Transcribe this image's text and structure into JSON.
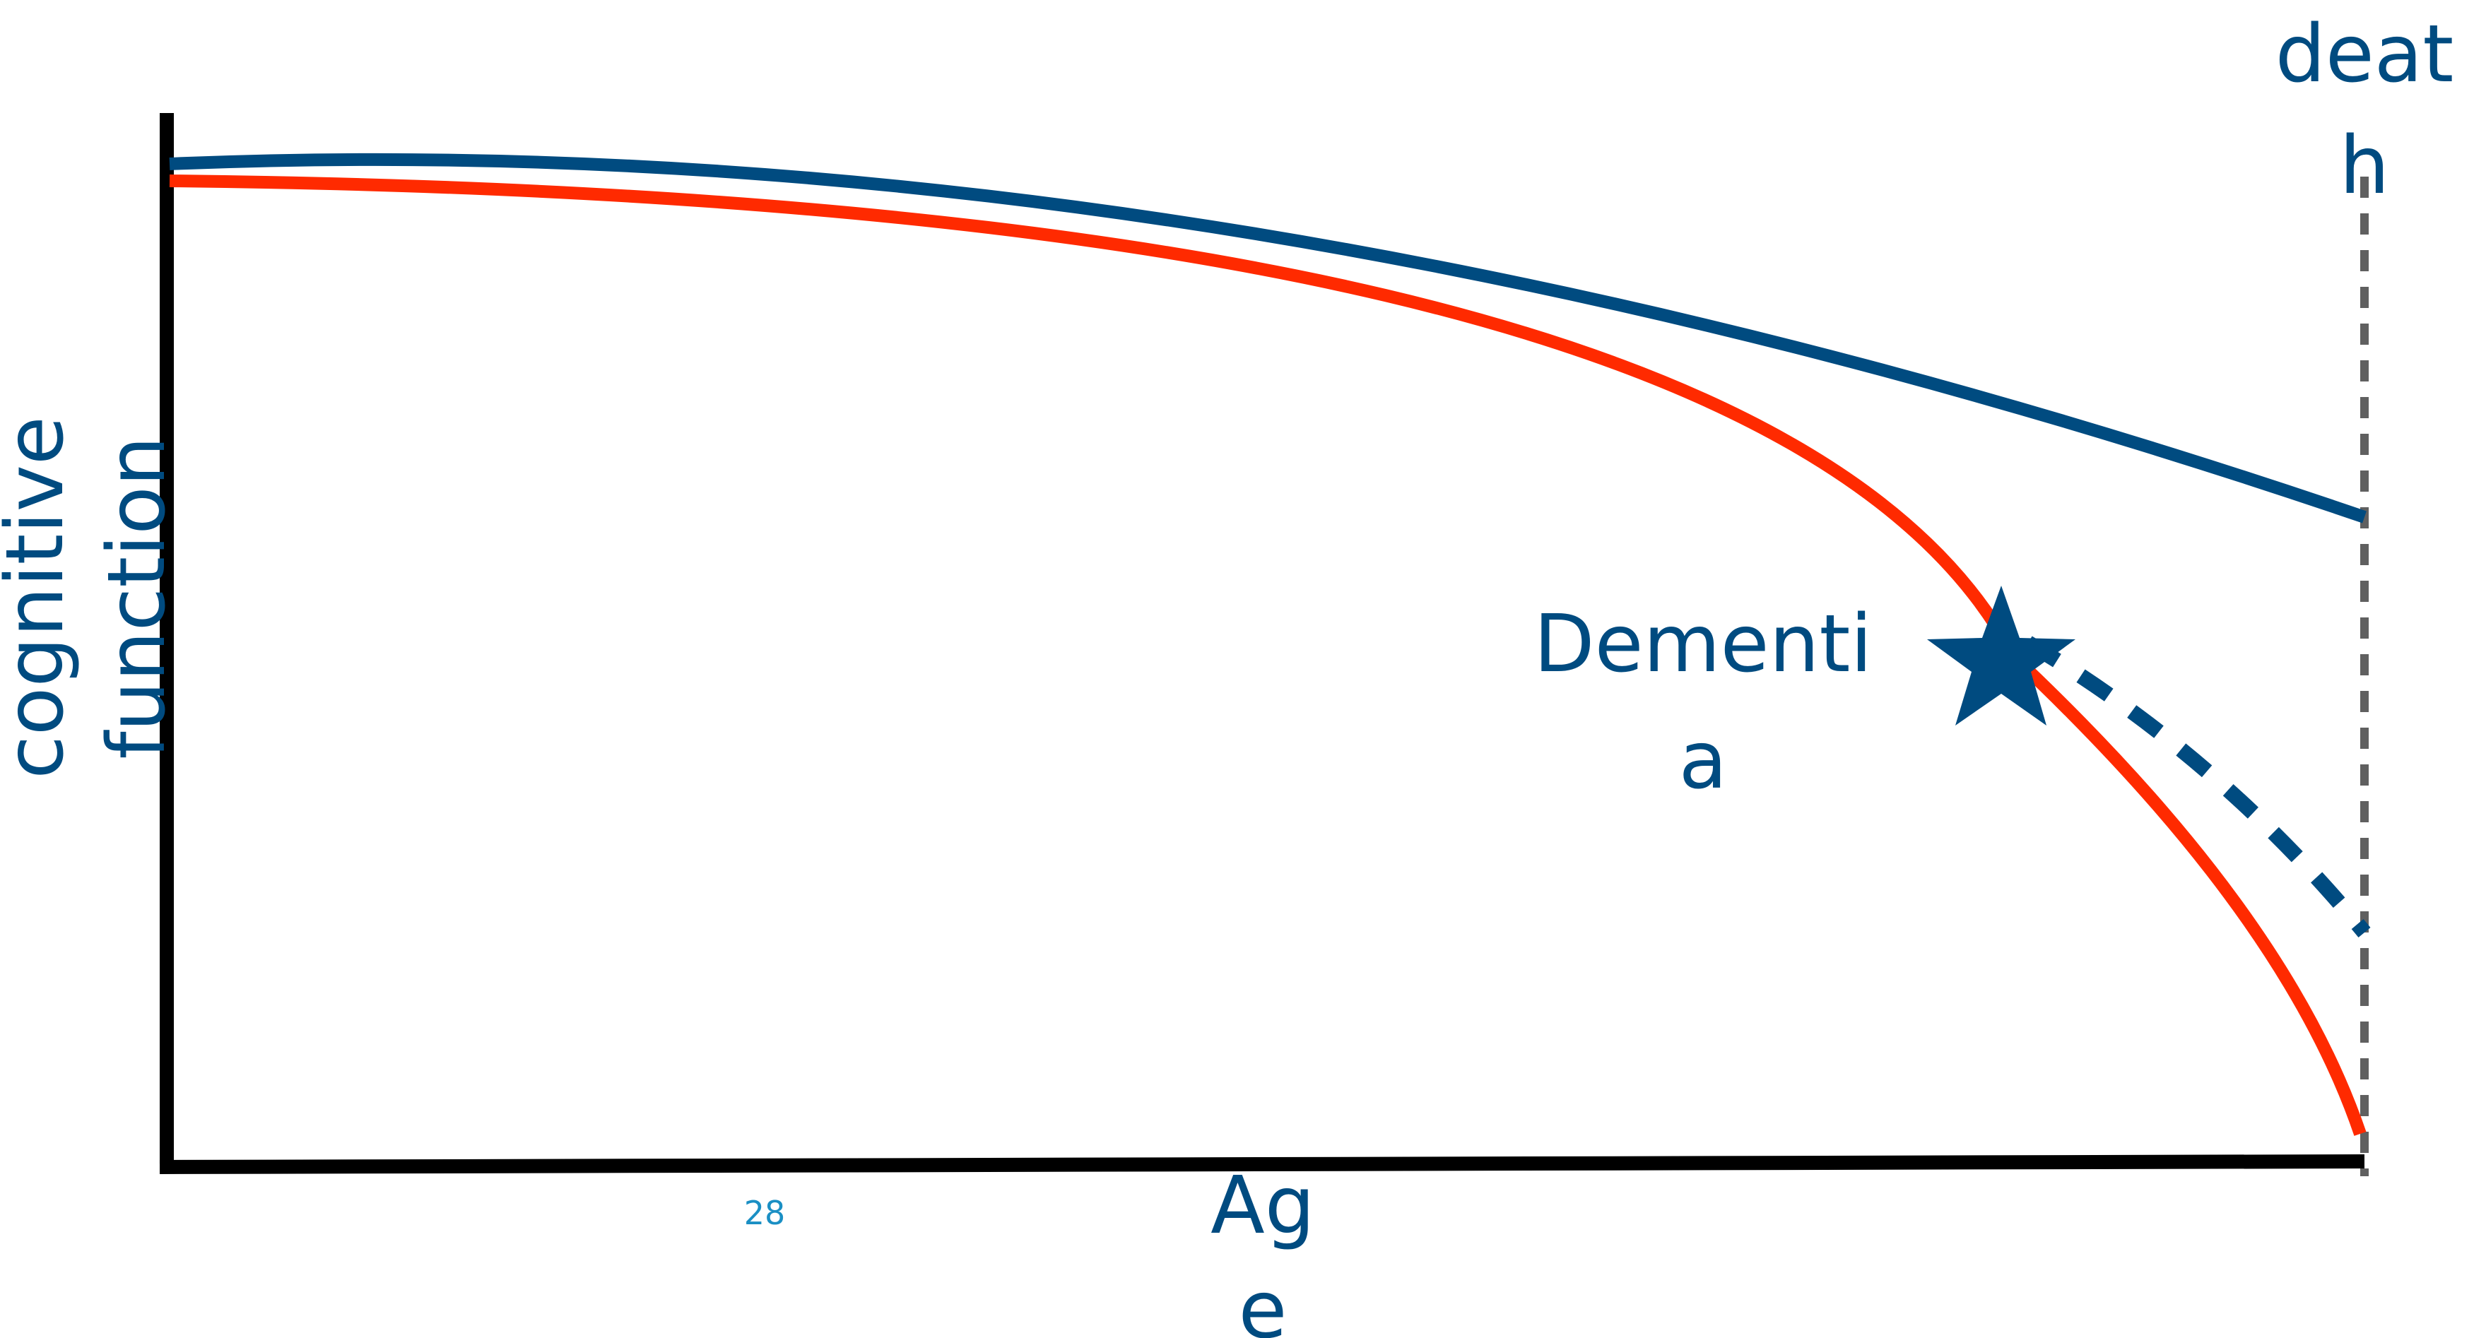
{
  "labels": {
    "y_axis_line1": "cognitive",
    "y_axis_line2": "function",
    "x_axis_line1": "Ag",
    "x_axis_line2": "e",
    "death_line1": "deat",
    "death_line2": "h",
    "dementia_line1": "Dementi",
    "dementia_line2": "a",
    "slide_number": "28"
  },
  "colors": {
    "normal_aging": "#004b80",
    "dementia_path": "#ff2a00",
    "axes": "#000000",
    "death_line": "#606060",
    "label_text": "#004b80",
    "slide_number": "#1a8fc4"
  },
  "icons": {
    "dementia_onset_marker": "star-icon"
  }
}
